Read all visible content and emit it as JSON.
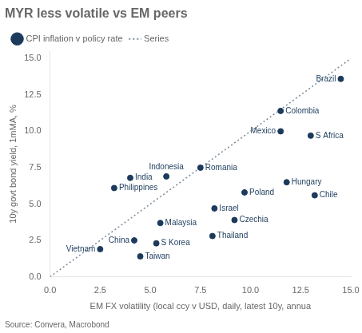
{
  "chart_data": {
    "type": "scatter",
    "title": "MYR less volatile vs EM peers",
    "xlabel": "EM FX volatility (local ccy v USD, daily, latest 10y, annua",
    "ylabel": "10y govt bond yield, 1mMA, %",
    "source": "Source: Convera, Macrobond",
    "xlim": [
      0.0,
      15.0
    ],
    "ylim": [
      0.0,
      15.5
    ],
    "xticks": [
      {
        "value": 0,
        "label": "0.0"
      },
      2.5,
      {
        "value": 5,
        "label": "5.0"
      },
      7.5,
      {
        "value": 10,
        "label": "10.0"
      },
      12.5,
      {
        "value": 15,
        "label": "15.0"
      }
    ],
    "yticks": [
      {
        "value": 0,
        "label": "0.0"
      },
      2.5,
      {
        "value": 5,
        "label": "5.0"
      },
      7.5,
      {
        "value": 10,
        "label": "10.0"
      },
      12.5,
      {
        "value": 15,
        "label": "15.0"
      }
    ],
    "grid": false,
    "legend": "top",
    "series": [
      {
        "name": "Series",
        "type": "line",
        "line_style": "dotted",
        "color": "#7a8a9a",
        "x": [
          0.0,
          15.0
        ],
        "values": [
          0.0,
          15.0
        ]
      },
      {
        "name": "CPI inflation v policy rate",
        "type": "scatter",
        "color": "#1b3a5c",
        "labels": [
          "Brazil",
          "Colombia",
          "S Africa",
          "Mexico",
          "Hungary",
          "Chile",
          "Romania",
          "Poland",
          "Indonesia",
          "India",
          "Philippines",
          "Israel",
          "Czechia",
          "Malaysia",
          "Thailand",
          "S Korea",
          "China",
          "Vietnam",
          "Taiwan"
        ],
        "x": [
          14.5,
          11.5,
          13.0,
          11.5,
          11.8,
          13.2,
          7.5,
          9.7,
          5.8,
          4.0,
          3.2,
          8.2,
          9.2,
          5.5,
          8.1,
          5.3,
          4.2,
          2.5,
          4.5
        ],
        "values": [
          13.6,
          11.4,
          9.7,
          10.0,
          6.5,
          5.6,
          7.5,
          5.8,
          6.9,
          6.8,
          6.1,
          4.7,
          3.9,
          3.7,
          2.8,
          2.3,
          2.5,
          1.9,
          1.4
        ]
      }
    ]
  }
}
